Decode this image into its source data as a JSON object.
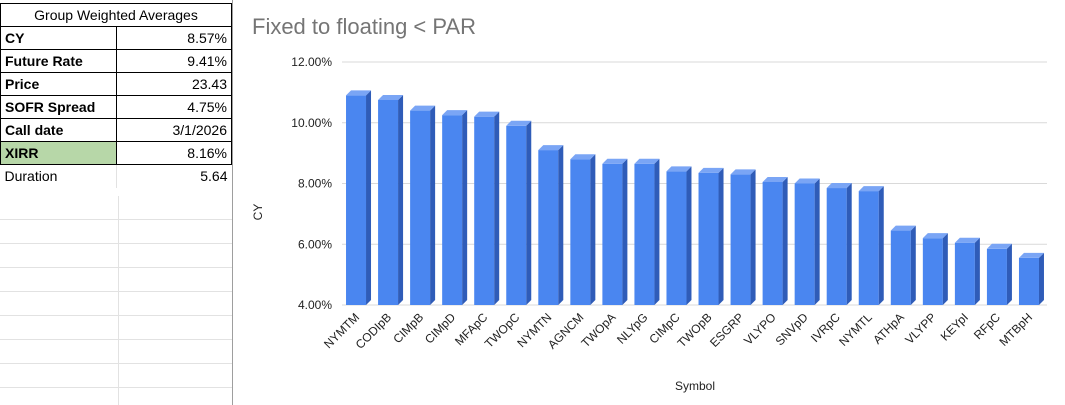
{
  "table": {
    "header": "Group Weighted Averages",
    "rows": [
      {
        "label": "CY",
        "value": "8.57%"
      },
      {
        "label": "Future Rate",
        "value": "9.41%"
      },
      {
        "label": "Price",
        "value": "23.43"
      },
      {
        "label": "SOFR Spread",
        "value": "4.75%"
      },
      {
        "label": "Call date",
        "value": "3/1/2026"
      },
      {
        "label": "XIRR",
        "value": "8.16%"
      },
      {
        "label": "Duration",
        "value": "5.64"
      }
    ]
  },
  "colors": {
    "bar_front": "#4a86f0",
    "bar_side": "#2f5cb8",
    "bar_top": "#7aa5f5",
    "xirr_cell": "#b7d7a8",
    "gridline": "#d9d9d9"
  },
  "chart_data": {
    "type": "bar",
    "title": "Fixed to floating < PAR",
    "xlabel": "Symbol",
    "ylabel": "CY",
    "ylim": [
      4,
      12
    ],
    "yticks": [
      "4.00%",
      "6.00%",
      "8.00%",
      "10.00%",
      "12.00%"
    ],
    "grid": true,
    "categories": [
      "NYMTM",
      "CODIpB",
      "CIMpB",
      "CIMpD",
      "MFApC",
      "TWOpC",
      "NYMTN",
      "AGNCM",
      "TWOpA",
      "NLYpG",
      "CIMpC",
      "TWOpB",
      "ESGRP",
      "VLYPO",
      "SNVpD",
      "IVRpC",
      "NYMTL",
      "ATHpA",
      "VLYPP",
      "KEYpI",
      "RFpC",
      "MTBpH"
    ],
    "values": [
      10.9,
      10.75,
      10.4,
      10.25,
      10.2,
      9.9,
      9.1,
      8.8,
      8.65,
      8.65,
      8.4,
      8.35,
      8.3,
      8.05,
      8.0,
      7.85,
      7.75,
      6.45,
      6.2,
      6.05,
      5.85,
      5.55
    ]
  }
}
